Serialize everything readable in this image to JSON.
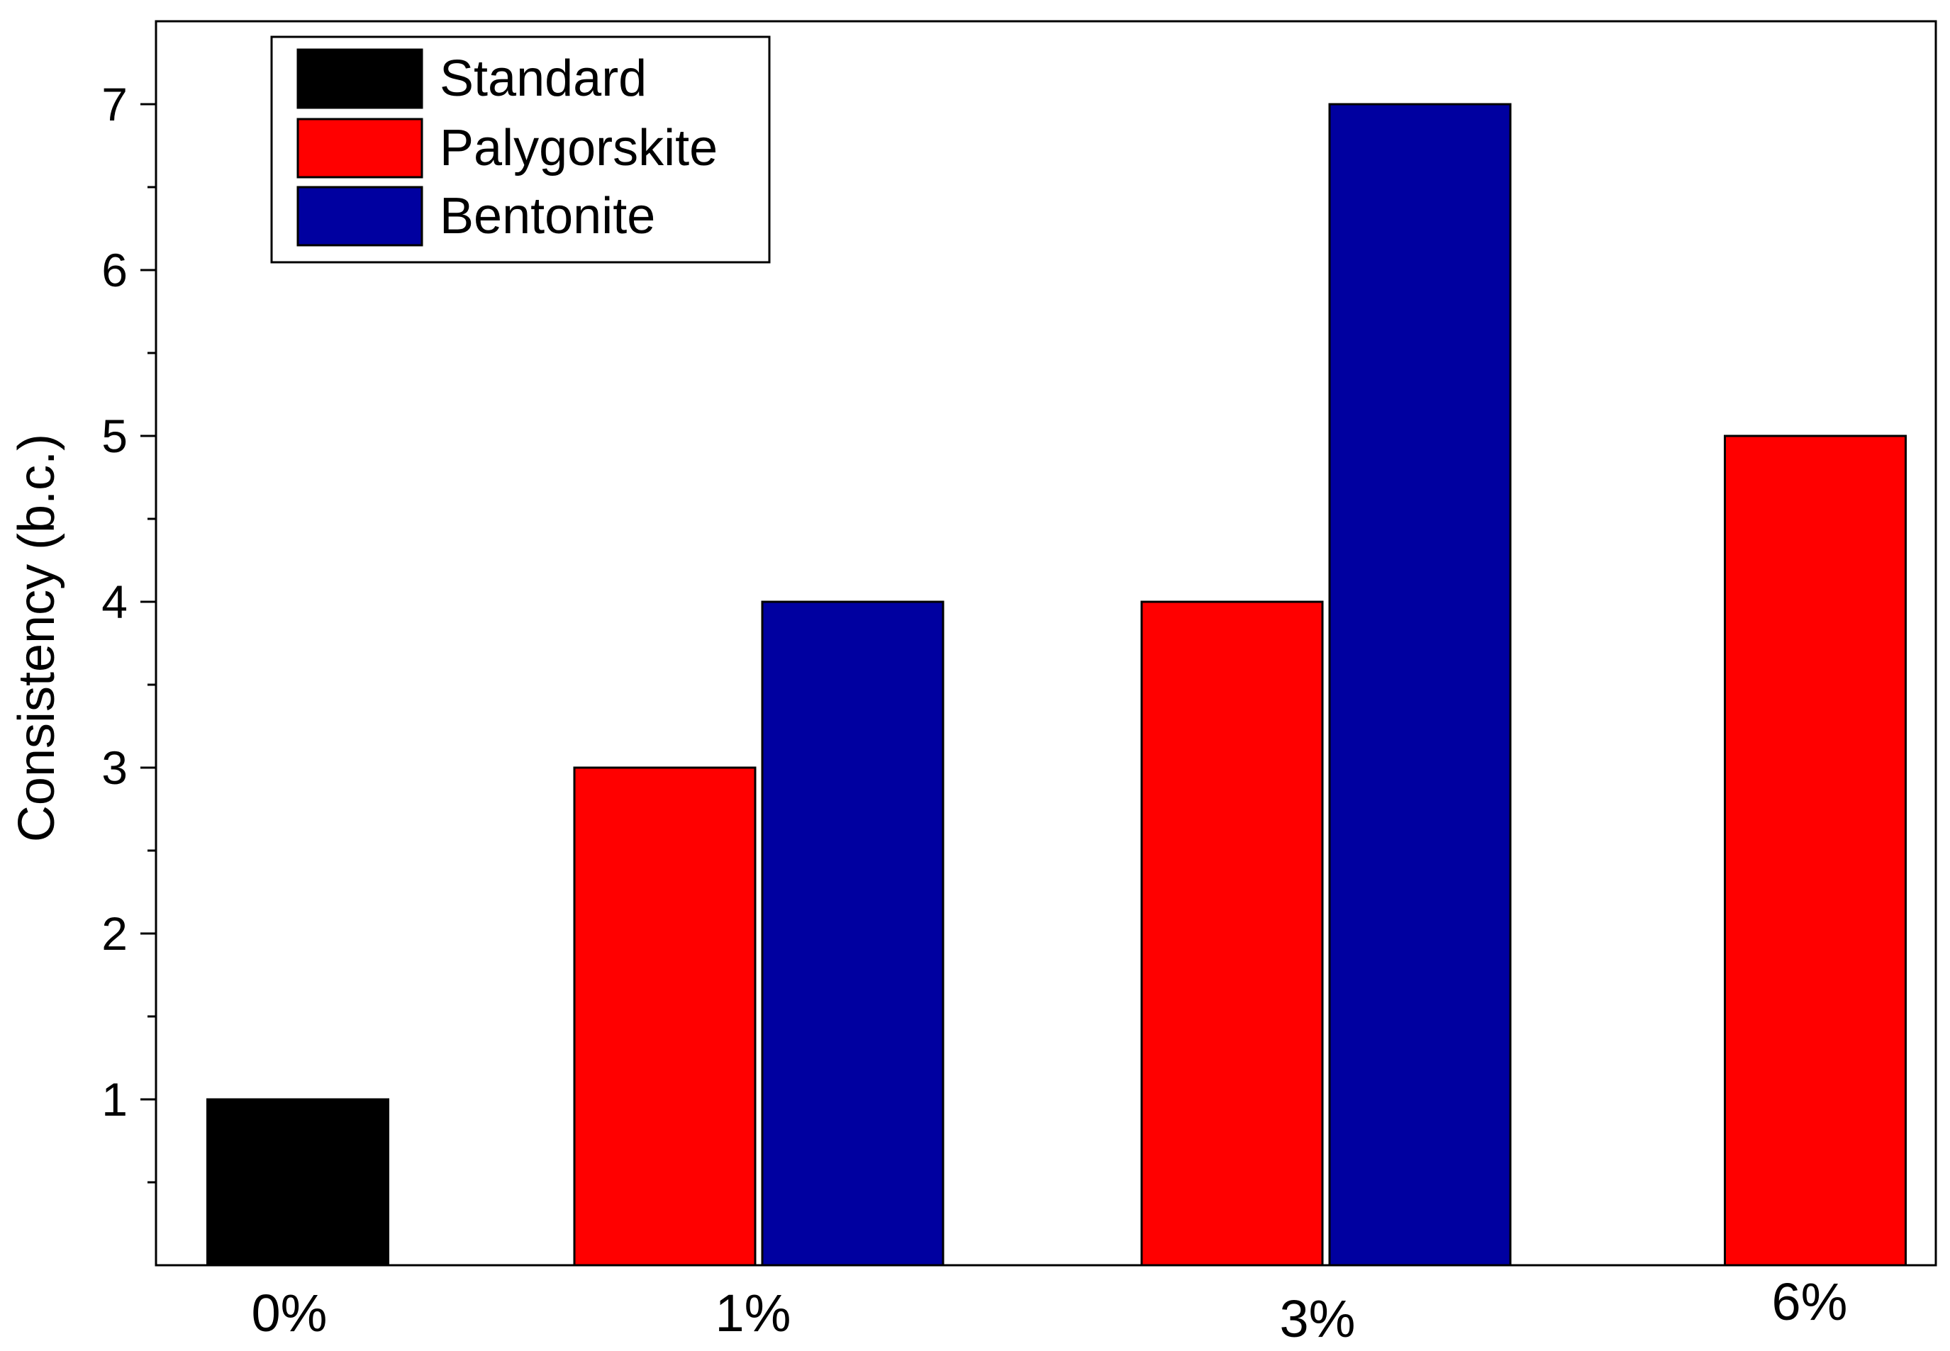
{
  "chart_data": {
    "type": "bar",
    "title": "",
    "xlabel": "",
    "ylabel": "Consistency (b.c.)",
    "categories": [
      "0%",
      "1%",
      "3%",
      "6%"
    ],
    "series": [
      {
        "name": "Standard",
        "color": "#000000",
        "values": [
          1,
          null,
          null,
          null
        ]
      },
      {
        "name": "Palygorskite",
        "color": "#ff0000",
        "values": [
          null,
          3,
          4,
          5
        ]
      },
      {
        "name": "Bentonite",
        "color": "#0000a0",
        "values": [
          null,
          4,
          7,
          null
        ]
      }
    ],
    "ylim": [
      0,
      7.5
    ],
    "yticks": [
      "1",
      "2",
      "3",
      "4",
      "5",
      "6",
      "7"
    ],
    "grid": false,
    "legend": "top-left"
  }
}
